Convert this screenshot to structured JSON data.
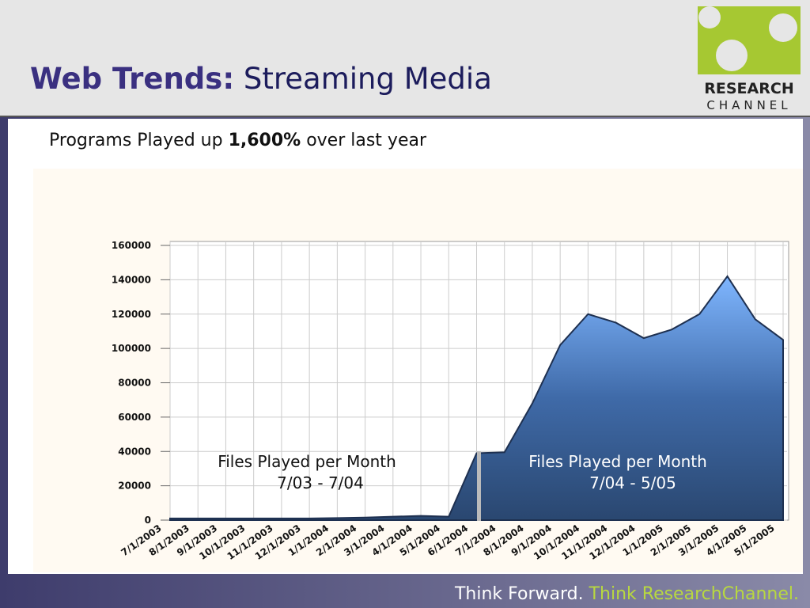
{
  "header": {
    "title_bold": "Web Trends:",
    "title_rest": "Streaming Media",
    "logo_top": "RESEARCH",
    "logo_bottom": "CHANNEL"
  },
  "subtitle": {
    "before": "Programs Played up",
    "bold": "1,600%",
    "after": "over last year"
  },
  "chart_data": {
    "type": "area",
    "color": "#4a7cc0",
    "categories": [
      "7/1/2003",
      "8/1/2003",
      "9/1/2003",
      "10/1/2003",
      "11/1/2003",
      "12/1/2003",
      "1/1/2004",
      "2/1/2004",
      "3/1/2004",
      "4/1/2004",
      "5/1/2004",
      "6/1/2004",
      "7/1/2004",
      "8/1/2004",
      "9/1/2004",
      "10/1/2004",
      "11/1/2004",
      "12/1/2004",
      "1/1/2005",
      "2/1/2005",
      "3/1/2005",
      "4/1/2005",
      "5/1/2005"
    ],
    "values": [
      1000,
      1000,
      1000,
      1000,
      1000,
      1000,
      1200,
      1500,
      2000,
      2500,
      2000,
      39000,
      39500,
      68000,
      102000,
      120000,
      115000,
      106000,
      111000,
      120000,
      142000,
      117000,
      105000
    ],
    "ylim": [
      0,
      160000
    ],
    "yticks": [
      0,
      20000,
      40000,
      60000,
      80000,
      100000,
      120000,
      140000,
      160000
    ],
    "grid": true,
    "annotations": [
      "Files Played per Month",
      "7/03 - 7/04",
      "Files Played per Month",
      "7/04 - 5/05"
    ]
  },
  "footer": {
    "left": "Think Forward.",
    "right": "Think ResearchChannel."
  }
}
